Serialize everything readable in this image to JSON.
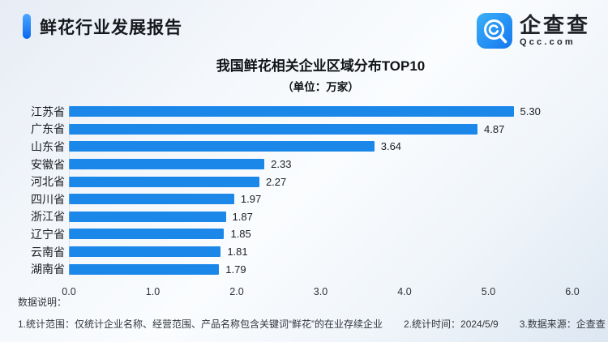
{
  "header": {
    "title": "鲜花行业发展报告",
    "logo": {
      "name": "企查查",
      "domain": "Qcc.com"
    }
  },
  "chart_data": {
    "type": "bar",
    "orientation": "horizontal",
    "title": "我国鲜花相关企业区域分布TOP10",
    "subtitle": "（单位：万家）",
    "categories": [
      "江苏省",
      "广东省",
      "山东省",
      "安徽省",
      "河北省",
      "四川省",
      "浙江省",
      "辽宁省",
      "云南省",
      "湖南省"
    ],
    "values": [
      5.3,
      4.87,
      3.64,
      2.33,
      2.27,
      1.97,
      1.87,
      1.85,
      1.81,
      1.79
    ],
    "value_labels": [
      "5.30",
      "4.87",
      "3.64",
      "2.33",
      "2.27",
      "1.97",
      "1.87",
      "1.85",
      "1.81",
      "1.79"
    ],
    "xlabel": "",
    "ylabel": "",
    "xlim": [
      0,
      6.0
    ],
    "x_ticks": [
      "0.0",
      "1.0",
      "2.0",
      "3.0",
      "4.0",
      "5.0",
      "6.0"
    ],
    "grid": false,
    "legend": false,
    "bar_color": "#1b87e9"
  },
  "footer": {
    "heading": "数据说明：",
    "notes": [
      "1.统计范围：仅统计企业名称、经营范围、产品名称包含关键词“鲜花”的在业存续企业",
      "2.统计时间：2024/5/9",
      "3.数据来源：企查查"
    ]
  },
  "colors": {
    "accent_from": "#4aa8ff",
    "accent_to": "#0a67f0",
    "bar": "#1b87e9",
    "logo_from": "#3ab0f8",
    "logo_to": "#1677f0",
    "background_edge": "#dde7f2"
  }
}
